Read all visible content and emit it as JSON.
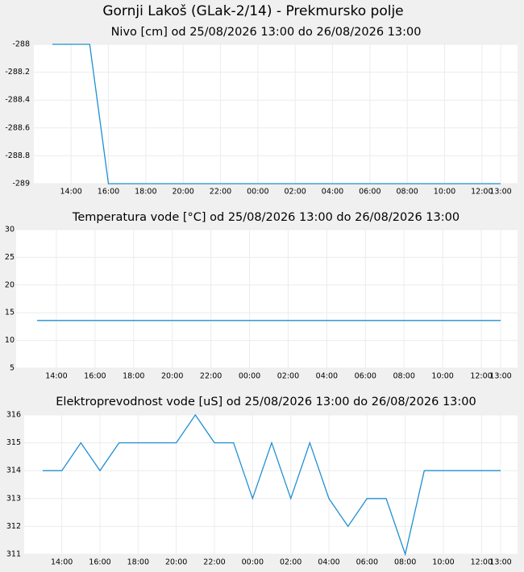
{
  "title": "Gornji Lakoš (GLak-2/14) - Prekmursko polje",
  "chart_data": [
    {
      "type": "line",
      "title": "Nivo [cm] od 25/08/2026 13:00 do 26/08/2026 13:00",
      "categories": [
        null,
        "14:00",
        null,
        "16:00",
        null,
        "18:00",
        null,
        "20:00",
        null,
        "22:00",
        null,
        "00:00",
        null,
        "02:00",
        null,
        "04:00",
        null,
        "06:00",
        null,
        "08:00",
        null,
        "10:00",
        null,
        "12:00",
        "13:00"
      ],
      "values": [
        -288,
        -288,
        -288,
        -289,
        -289,
        -289,
        -289,
        -289,
        -289,
        -289,
        -289,
        -289,
        -289,
        -289,
        -289,
        -289,
        -289,
        -289,
        -289,
        -289,
        -289,
        -289,
        -289,
        -289,
        -289
      ],
      "color": "#1f8fd2",
      "ylim": [
        -289,
        -288
      ],
      "yticks": [
        -289,
        -288.8,
        -288.6,
        -288.4,
        -288.2,
        -288
      ],
      "grid": true
    },
    {
      "type": "line",
      "title": "Temperatura vode [°C] od 25/08/2026 13:00 do 26/08/2026 13:00",
      "categories": [
        null,
        "14:00",
        null,
        "16:00",
        null,
        "18:00",
        null,
        "20:00",
        null,
        "22:00",
        null,
        "00:00",
        null,
        "02:00",
        null,
        "04:00",
        null,
        "06:00",
        null,
        "08:00",
        null,
        "10:00",
        null,
        "12:00",
        "13:00"
      ],
      "values": [
        13.6,
        13.6,
        13.6,
        13.6,
        13.6,
        13.6,
        13.6,
        13.6,
        13.6,
        13.6,
        13.6,
        13.6,
        13.6,
        13.6,
        13.6,
        13.6,
        13.6,
        13.6,
        13.6,
        13.6,
        13.6,
        13.6,
        13.6,
        13.6,
        13.6
      ],
      "color": "#1f8fd2",
      "ylim": [
        5,
        30
      ],
      "yticks": [
        5,
        10,
        15,
        20,
        25,
        30
      ],
      "grid": true
    },
    {
      "type": "line",
      "title": "Elektroprevodnost vode [uS] od 25/08/2026 13:00 do 26/08/2026 13:00",
      "categories": [
        null,
        "14:00",
        null,
        "16:00",
        null,
        "18:00",
        null,
        "20:00",
        null,
        "22:00",
        null,
        "00:00",
        null,
        "02:00",
        null,
        "04:00",
        null,
        "06:00",
        null,
        "08:00",
        null,
        "10:00",
        null,
        "12:00",
        "13:00"
      ],
      "values": [
        314,
        314,
        315,
        314,
        315,
        315,
        315,
        315,
        316,
        315,
        315,
        313,
        315,
        313,
        315,
        313,
        312,
        313,
        313,
        311,
        314,
        314,
        314,
        314,
        314
      ],
      "color": "#1f8fd2",
      "ylim": [
        311,
        316
      ],
      "yticks": [
        311,
        312,
        313,
        314,
        315,
        316
      ],
      "grid": true
    }
  ]
}
